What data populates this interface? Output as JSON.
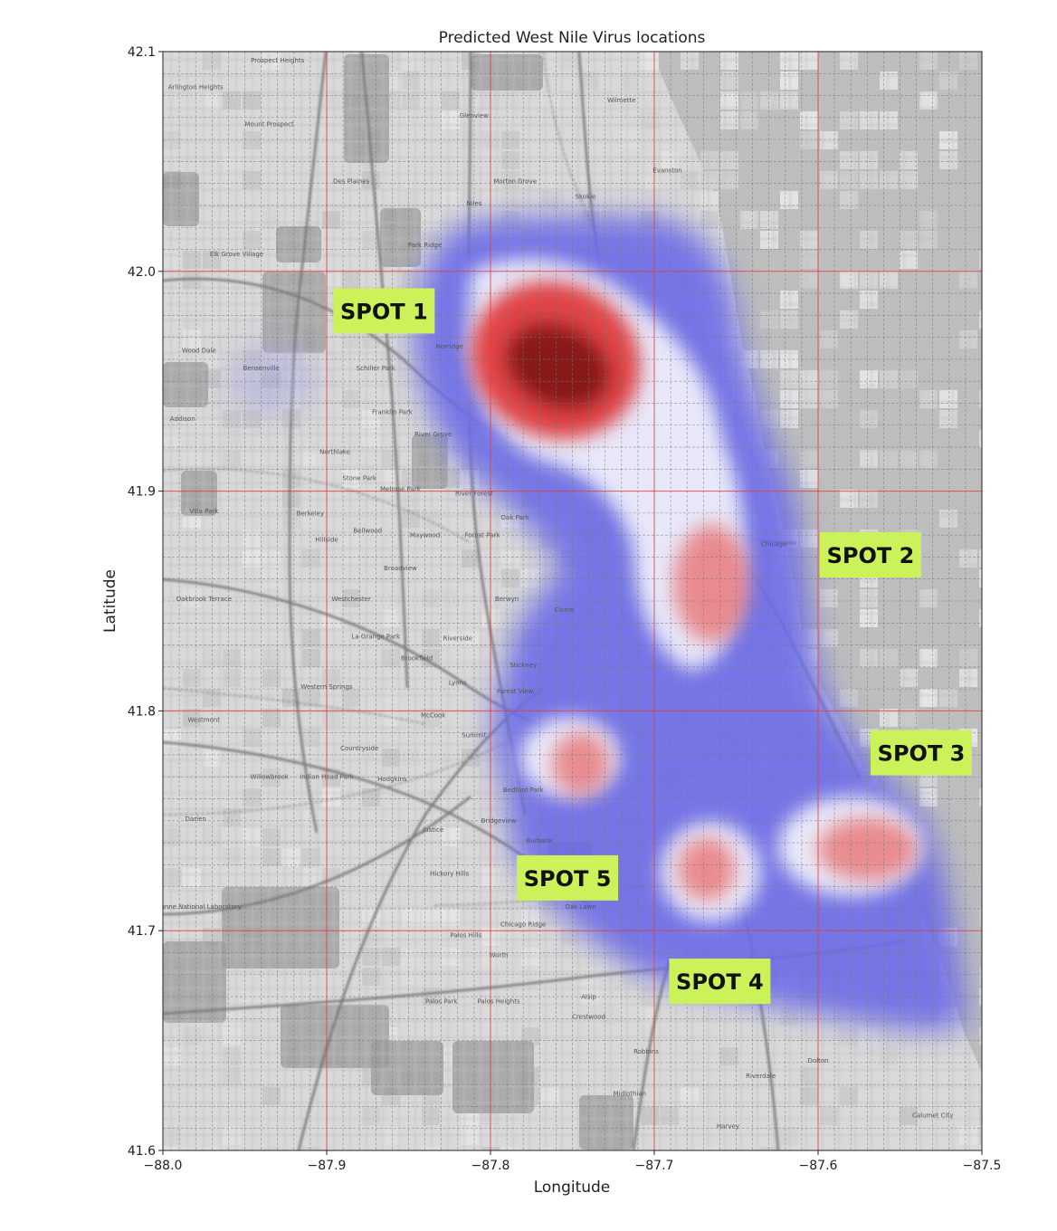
{
  "chart_data": {
    "type": "heatmap",
    "title": "Predicted West Nile Virus locations",
    "xlabel": "Longitude",
    "ylabel": "Latitude",
    "xlim": [
      -88.0,
      -87.5
    ],
    "ylim": [
      41.6,
      42.1
    ],
    "x_ticks": [
      {
        "value": -88.0,
        "label": "−88.0"
      },
      {
        "value": -87.9,
        "label": "−87.9"
      },
      {
        "value": -87.8,
        "label": "−87.8"
      },
      {
        "value": -87.7,
        "label": "−87.7"
      },
      {
        "value": -87.6,
        "label": "−87.6"
      },
      {
        "value": -87.5,
        "label": "−87.5"
      }
    ],
    "y_ticks": [
      {
        "value": 41.6,
        "label": "41.6"
      },
      {
        "value": 41.7,
        "label": "41.7"
      },
      {
        "value": 41.8,
        "label": "41.8"
      },
      {
        "value": 41.9,
        "label": "41.9"
      },
      {
        "value": 42.0,
        "label": "42.0"
      },
      {
        "value": 42.1,
        "label": "42.1"
      }
    ],
    "major_grid": true,
    "minor_grid": true,
    "colormap": [
      "#4040e0",
      "#ffffff",
      "#e03030",
      "#7a1010"
    ],
    "hotspots": [
      {
        "lon": -87.76,
        "lat": 41.955,
        "intensity": 1.0
      },
      {
        "lon": -87.665,
        "lat": 41.858,
        "intensity": 0.55
      },
      {
        "lon": -87.745,
        "lat": 41.776,
        "intensity": 0.45
      },
      {
        "lon": -87.668,
        "lat": 41.728,
        "intensity": 0.5
      },
      {
        "lon": -87.57,
        "lat": 41.737,
        "intensity": 0.45
      }
    ],
    "annotations": [
      {
        "text": "SPOT 1",
        "lon": -87.865,
        "lat": 41.982
      },
      {
        "text": "SPOT 2",
        "lon": -87.568,
        "lat": 41.871
      },
      {
        "text": "SPOT 3",
        "lon": -87.537,
        "lat": 41.781
      },
      {
        "text": "SPOT 4",
        "lon": -87.66,
        "lat": 41.677
      },
      {
        "text": "SPOT 5",
        "lon": -87.753,
        "lat": 41.724
      }
    ]
  },
  "map_labels": [
    {
      "text": "Evanston",
      "lon": -87.692,
      "lat": 42.045
    },
    {
      "text": "Chicago",
      "lon": -87.627,
      "lat": 41.875
    },
    {
      "text": "Wilmette",
      "lon": -87.72,
      "lat": 42.077
    },
    {
      "text": "Skokie",
      "lon": -87.742,
      "lat": 42.033
    },
    {
      "text": "Park Ridge",
      "lon": -87.84,
      "lat": 42.011
    },
    {
      "text": "Des Plaines",
      "lon": -87.885,
      "lat": 42.04
    },
    {
      "text": "Glenview",
      "lon": -87.81,
      "lat": 42.07
    },
    {
      "text": "Niles",
      "lon": -87.81,
      "lat": 42.03
    },
    {
      "text": "Morton Grove",
      "lon": -87.785,
      "lat": 42.04
    },
    {
      "text": "Norridge",
      "lon": -87.825,
      "lat": 41.965
    },
    {
      "text": "Schiller Park",
      "lon": -87.87,
      "lat": 41.955
    },
    {
      "text": "Franklin Park",
      "lon": -87.86,
      "lat": 41.935
    },
    {
      "text": "River Grove",
      "lon": -87.835,
      "lat": 41.925
    },
    {
      "text": "Northlake",
      "lon": -87.895,
      "lat": 41.917
    },
    {
      "text": "Stone Park",
      "lon": -87.88,
      "lat": 41.905
    },
    {
      "text": "Melrose Park",
      "lon": -87.855,
      "lat": 41.9
    },
    {
      "text": "River Forest",
      "lon": -87.81,
      "lat": 41.898
    },
    {
      "text": "Oak Park",
      "lon": -87.785,
      "lat": 41.887
    },
    {
      "text": "Forest Park",
      "lon": -87.805,
      "lat": 41.879
    },
    {
      "text": "Maywood",
      "lon": -87.84,
      "lat": 41.879
    },
    {
      "text": "Bellwood",
      "lon": -87.875,
      "lat": 41.881
    },
    {
      "text": "Berkeley",
      "lon": -87.91,
      "lat": 41.889
    },
    {
      "text": "Hillside",
      "lon": -87.9,
      "lat": 41.877
    },
    {
      "text": "Broadview",
      "lon": -87.855,
      "lat": 41.864
    },
    {
      "text": "Westchester",
      "lon": -87.885,
      "lat": 41.85
    },
    {
      "text": "Berwyn",
      "lon": -87.79,
      "lat": 41.85
    },
    {
      "text": "Cicero",
      "lon": -87.755,
      "lat": 41.845
    },
    {
      "text": "Riverside",
      "lon": -87.82,
      "lat": 41.832
    },
    {
      "text": "La Grange Park",
      "lon": -87.87,
      "lat": 41.833
    },
    {
      "text": "Brookfield",
      "lon": -87.845,
      "lat": 41.823
    },
    {
      "text": "Stickney",
      "lon": -87.78,
      "lat": 41.82
    },
    {
      "text": "Lyons",
      "lon": -87.82,
      "lat": 41.812
    },
    {
      "text": "Forest View",
      "lon": -87.785,
      "lat": 41.808
    },
    {
      "text": "Western Springs",
      "lon": -87.9,
      "lat": 41.81
    },
    {
      "text": "McCook",
      "lon": -87.835,
      "lat": 41.797
    },
    {
      "text": "Summit",
      "lon": -87.81,
      "lat": 41.788
    },
    {
      "text": "Countryside",
      "lon": -87.88,
      "lat": 41.782
    },
    {
      "text": "Indian Head Park",
      "lon": -87.9,
      "lat": 41.769
    },
    {
      "text": "Hodgkins",
      "lon": -87.86,
      "lat": 41.768
    },
    {
      "text": "Bedford Park",
      "lon": -87.78,
      "lat": 41.763
    },
    {
      "text": "Bridgeview",
      "lon": -87.795,
      "lat": 41.749
    },
    {
      "text": "Justice",
      "lon": -87.835,
      "lat": 41.745
    },
    {
      "text": "Burbank",
      "lon": -87.77,
      "lat": 41.74
    },
    {
      "text": "Hickory Hills",
      "lon": -87.825,
      "lat": 41.725
    },
    {
      "text": "Oak Lawn",
      "lon": -87.745,
      "lat": 41.71
    },
    {
      "text": "Chicago Ridge",
      "lon": -87.78,
      "lat": 41.702
    },
    {
      "text": "Palos Hills",
      "lon": -87.815,
      "lat": 41.697
    },
    {
      "text": "Worth",
      "lon": -87.795,
      "lat": 41.688
    },
    {
      "text": "Palos Park",
      "lon": -87.83,
      "lat": 41.667
    },
    {
      "text": "Palos Heights",
      "lon": -87.795,
      "lat": 41.667
    },
    {
      "text": "Alsip",
      "lon": -87.74,
      "lat": 41.669
    },
    {
      "text": "Crestwood",
      "lon": -87.74,
      "lat": 41.66
    },
    {
      "text": "Robbins",
      "lon": -87.705,
      "lat": 41.644
    },
    {
      "text": "Midlothian",
      "lon": -87.715,
      "lat": 41.625
    },
    {
      "text": "Dolton",
      "lon": -87.6,
      "lat": 41.64
    },
    {
      "text": "Riverdale",
      "lon": -87.635,
      "lat": 41.633
    },
    {
      "text": "Harvey",
      "lon": -87.655,
      "lat": 41.61
    },
    {
      "text": "Calumet City",
      "lon": -87.53,
      "lat": 41.615
    },
    {
      "text": "Villa Park",
      "lon": -87.975,
      "lat": 41.89
    },
    {
      "text": "Oakbrook Terrace",
      "lon": -87.975,
      "lat": 41.85
    },
    {
      "text": "Westmont",
      "lon": -87.975,
      "lat": 41.795
    },
    {
      "text": "Willowbrook",
      "lon": -87.935,
      "lat": 41.769
    },
    {
      "text": "Darien",
      "lon": -87.98,
      "lat": 41.75
    },
    {
      "text": "Wood Dale",
      "lon": -87.978,
      "lat": 41.963
    },
    {
      "text": "Bensenville",
      "lon": -87.94,
      "lat": 41.955
    },
    {
      "text": "Addison",
      "lon": -87.988,
      "lat": 41.932
    },
    {
      "text": "Elk Grove Village",
      "lon": -87.955,
      "lat": 42.007
    },
    {
      "text": "Mount Prospect",
      "lon": -87.935,
      "lat": 42.066
    },
    {
      "text": "Arlington Heights",
      "lon": -87.98,
      "lat": 42.083
    },
    {
      "text": "Prospect Heights",
      "lon": -87.93,
      "lat": 42.095
    },
    {
      "text": "Argonne National Laboratory",
      "lon": -87.98,
      "lat": 41.71
    }
  ]
}
